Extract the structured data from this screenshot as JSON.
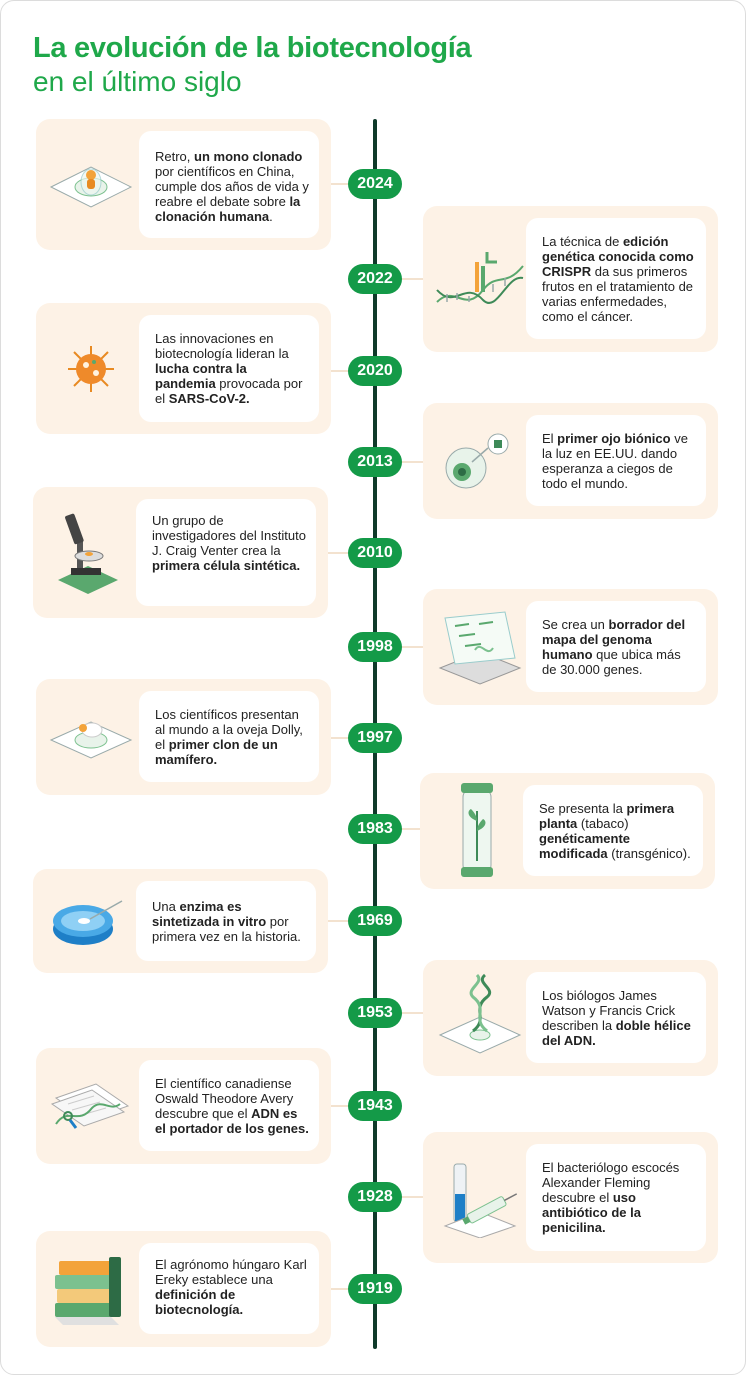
{
  "title": {
    "line1": "La evolución de la biotecnología",
    "line2": "en el último siglo"
  },
  "colors": {
    "accent": "#1fa84a",
    "pill": "#149a48",
    "axis": "#0f3a2a",
    "card": "#fdf2e6"
  },
  "events": [
    {
      "year": "2024",
      "side": "left",
      "icon": "cloned-monkey-icon",
      "parts": [
        [
          "Retro, ",
          false
        ],
        [
          "un mono clonado",
          true
        ],
        [
          " por científicos en China, cumple dos años de vida y reabre el debate sobre ",
          false
        ],
        [
          "la clonación humana",
          true
        ],
        [
          ".",
          false
        ]
      ]
    },
    {
      "year": "2022",
      "side": "right",
      "icon": "dna-crispr-icon",
      "parts": [
        [
          "La técnica de ",
          false
        ],
        [
          "edición genética conocida como CRISPR",
          true
        ],
        [
          " da sus primeros frutos en el tratamiento de varias enfermedades, como el cáncer.",
          false
        ]
      ]
    },
    {
      "year": "2020",
      "side": "left",
      "icon": "virus-icon",
      "parts": [
        [
          "Las innovaciones en biotecnología lideran la ",
          false
        ],
        [
          "lucha contra la pandemia",
          true
        ],
        [
          " provocada por el ",
          false
        ],
        [
          "SARS-CoV-2.",
          true
        ]
      ]
    },
    {
      "year": "2013",
      "side": "right",
      "icon": "bionic-eye-icon",
      "parts": [
        [
          "El ",
          false
        ],
        [
          "primer ojo biónico",
          true
        ],
        [
          " ve la luz en EE.UU. dando esperanza a ciegos de todo el mundo.",
          false
        ]
      ]
    },
    {
      "year": "2010",
      "side": "left",
      "icon": "microscope-icon",
      "parts": [
        [
          "Un grupo de investigadores del Instituto J. Craig Venter crea la ",
          false
        ],
        [
          "primera célula sintética.",
          true
        ]
      ]
    },
    {
      "year": "1998",
      "side": "right",
      "icon": "genome-map-icon",
      "parts": [
        [
          "Se crea un ",
          false
        ],
        [
          "borrador del mapa del genoma humano",
          true
        ],
        [
          " que ubica más de 30.000 genes.",
          false
        ]
      ]
    },
    {
      "year": "1997",
      "side": "left",
      "icon": "sheep-icon",
      "parts": [
        [
          "Los científicos presentan al mundo a la oveja Dolly, el ",
          false
        ],
        [
          "primer clon de un mamífero.",
          true
        ]
      ]
    },
    {
      "year": "1983",
      "side": "right",
      "icon": "plant-tube-icon",
      "parts": [
        [
          "Se presenta la ",
          false
        ],
        [
          "primera planta",
          true
        ],
        [
          " (tabaco) ",
          false
        ],
        [
          "genéticamente modificada",
          true
        ],
        [
          " (transgénico).",
          false
        ]
      ]
    },
    {
      "year": "1969",
      "side": "left",
      "icon": "petri-dish-icon",
      "parts": [
        [
          "Una ",
          false
        ],
        [
          "enzima es sintetizada in vitro",
          true
        ],
        [
          " por primera vez en la historia.",
          false
        ]
      ]
    },
    {
      "year": "1953",
      "side": "right",
      "icon": "double-helix-icon",
      "parts": [
        [
          "Los biólogos James Watson y Francis Crick describen la ",
          false
        ],
        [
          "doble hélice del ADN.",
          true
        ]
      ]
    },
    {
      "year": "1943",
      "side": "left",
      "icon": "dna-documents-icon",
      "parts": [
        [
          "El científico canadiense Oswald Theodore Avery descubre que el ",
          false
        ],
        [
          "ADN es el portador de los genes.",
          true
        ]
      ]
    },
    {
      "year": "1928",
      "side": "right",
      "icon": "syringe-vial-icon",
      "parts": [
        [
          "El bacteriólogo escocés Alexander Fleming descubre el ",
          false
        ],
        [
          "uso antibiótico de la penicilina.",
          true
        ]
      ]
    },
    {
      "year": "1919",
      "side": "left",
      "icon": "books-icon",
      "parts": [
        [
          "El agrónomo húngaro Karl Ereky establece una ",
          false
        ],
        [
          "definición de biotecnología.",
          true
        ]
      ]
    }
  ]
}
